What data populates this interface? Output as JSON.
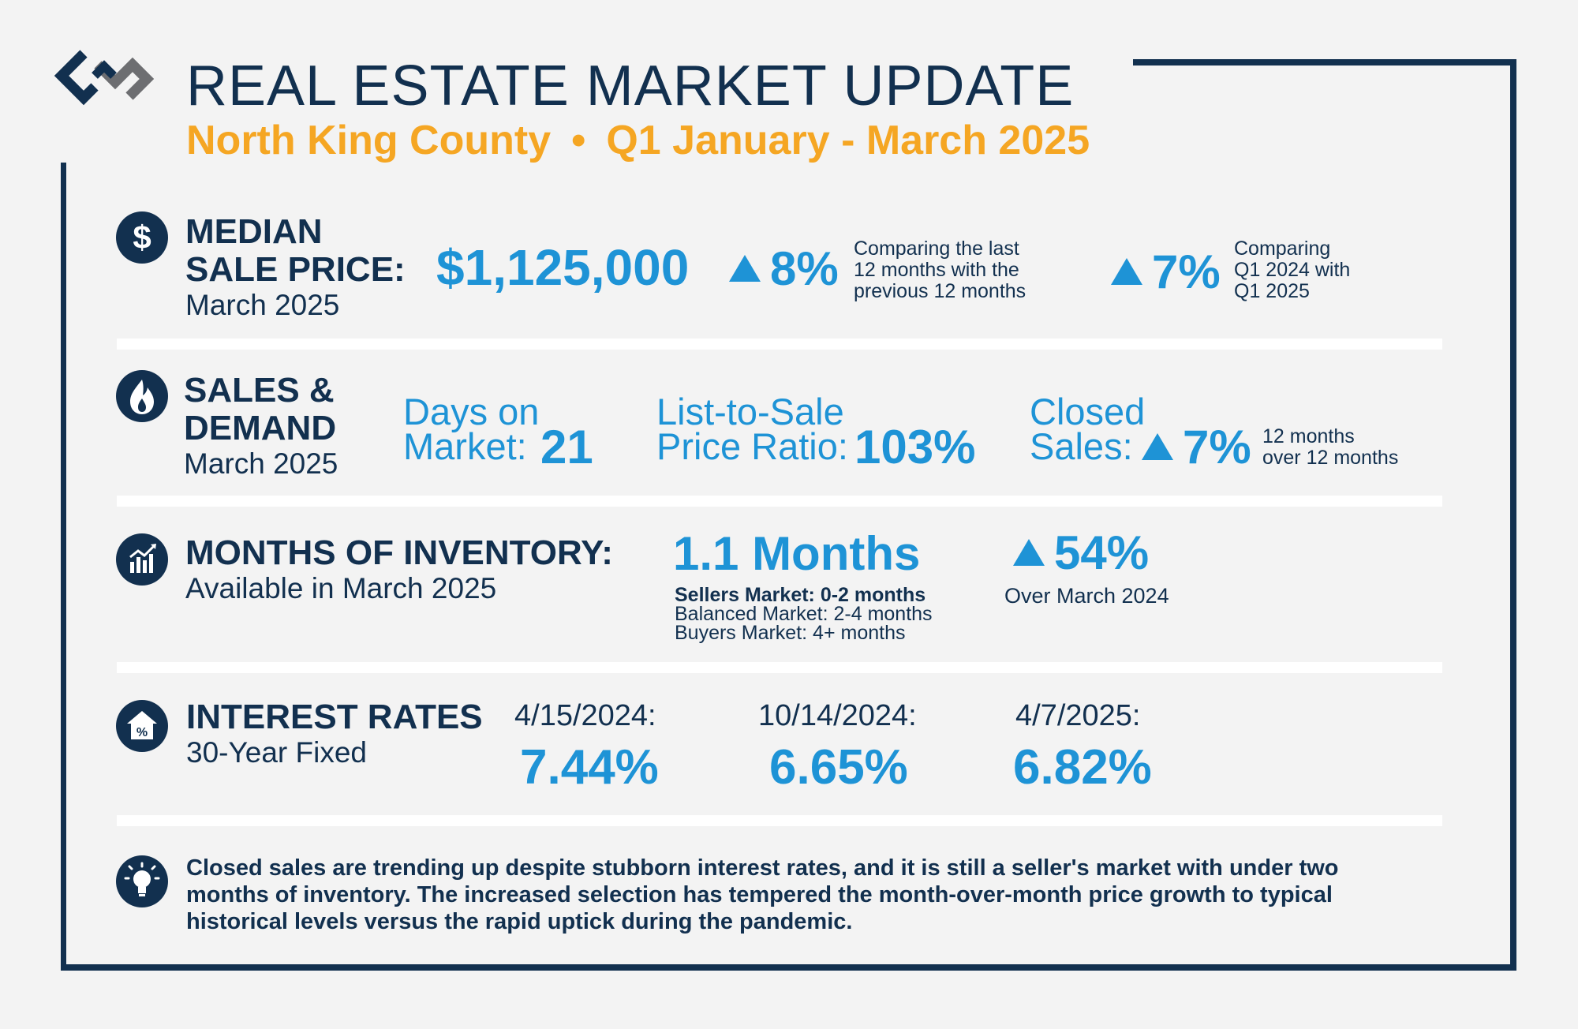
{
  "header": {
    "title": "REAL ESTATE MARKET UPDATE",
    "region": "North King County",
    "separator": "•",
    "period": "Q1 January - March 2025"
  },
  "colors": {
    "navy": "#12304f",
    "blue": "#1e93d6",
    "gold": "#f5a623"
  },
  "median_price": {
    "icon": "dollar-icon",
    "heading_line1": "MEDIAN",
    "heading_line2": "SALE PRICE:",
    "month": "March 2025",
    "value": "$1,125,000",
    "change1": "8%",
    "change1_note_l1": "Comparing the last",
    "change1_note_l2": "12 months with the",
    "change1_note_l3": "previous 12 months",
    "change2": "7%",
    "change2_note_l1": "Comparing",
    "change2_note_l2": "Q1 2024 with",
    "change2_note_l3": "Q1 2025"
  },
  "sales_demand": {
    "icon": "flame-icon",
    "heading_line1": "SALES &",
    "heading_line2": "DEMAND",
    "month": "March 2025",
    "dom_label_l1": "Days on",
    "dom_label_l2": "Market:",
    "dom_value": "21",
    "ratio_label_l1": "List-to-Sale",
    "ratio_label_l2": "Price Ratio:",
    "ratio_value": "103%",
    "closed_label_l1": "Closed",
    "closed_label_l2": "Sales:",
    "closed_value": "7%",
    "closed_note_l1": "12 months",
    "closed_note_l2": "over 12 months"
  },
  "inventory": {
    "icon": "bar-chart-icon",
    "heading": "MONTHS OF INVENTORY:",
    "sub": "Available in March 2025",
    "value": "1.1 Months",
    "legend_sellers": "Sellers Market: 0-2 months",
    "legend_balanced": "Balanced Market: 2-4 months",
    "legend_buyers": "Buyers Market: 4+ months",
    "change": "54%",
    "change_note": "Over March 2024"
  },
  "rates": {
    "icon": "house-percent-icon",
    "heading": "INTEREST RATES",
    "sub": "30-Year Fixed",
    "items": [
      {
        "date": "4/15/2024:",
        "value": "7.44%"
      },
      {
        "date": "10/14/2024:",
        "value": "6.65%"
      },
      {
        "date": "4/7/2025:",
        "value": "6.82%"
      }
    ]
  },
  "summary": {
    "icon": "lightbulb-icon",
    "line1": "Closed sales are trending up despite stubborn interest rates, and it is still a seller's market with under two",
    "line2": "months of inventory. The increased selection has tempered the month-over-month price growth to typical",
    "line3": "historical levels versus the rapid uptick during the pandemic."
  }
}
